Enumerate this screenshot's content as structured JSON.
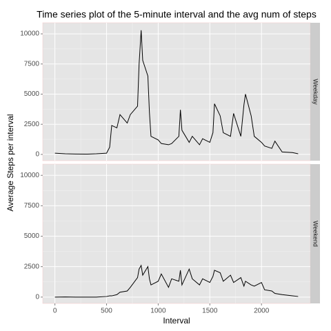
{
  "chart_data": {
    "type": "line",
    "title": "Time series plot of the 5-minute interval and the avg num of steps",
    "x_label": "Interval",
    "y_label": "Average Steps per interval",
    "xlim": [
      -117.75,
      2472.75
    ],
    "xticks": [
      0,
      500,
      1000,
      1500,
      2000
    ],
    "ylim": [
      -520,
      10920
    ],
    "yticks": [
      0,
      2500,
      5000,
      7500,
      10000
    ],
    "grid": true,
    "x": [
      0,
      100,
      200,
      300,
      400,
      500,
      530,
      550,
      600,
      630,
      700,
      730,
      800,
      815,
      835,
      850,
      900,
      915,
      930,
      1000,
      1030,
      1100,
      1130,
      1200,
      1215,
      1230,
      1300,
      1330,
      1400,
      1430,
      1500,
      1530,
      1545,
      1600,
      1630,
      1700,
      1730,
      1800,
      1830,
      1845,
      1900,
      1930,
      2000,
      2030,
      2100,
      2130,
      2200,
      2300,
      2355
    ],
    "series": [
      {
        "name": "Weekday",
        "color": "#000000",
        "values": [
          100,
          50,
          30,
          20,
          50,
          100,
          600,
          2400,
          2200,
          3300,
          2600,
          3300,
          4000,
          7500,
          10300,
          7800,
          6500,
          3500,
          1500,
          1200,
          900,
          800,
          900,
          1500,
          3700,
          2000,
          1000,
          1500,
          800,
          1300,
          1000,
          1800,
          4200,
          3200,
          1800,
          1500,
          3400,
          1500,
          4100,
          5000,
          3200,
          1500,
          1000,
          700,
          500,
          1100,
          200,
          150,
          50
        ]
      },
      {
        "name": "Weekend",
        "color": "#000000",
        "values": [
          0,
          10,
          0,
          0,
          0,
          50,
          100,
          100,
          200,
          400,
          500,
          800,
          1600,
          2300,
          2600,
          1800,
          2500,
          1500,
          1000,
          1300,
          1900,
          800,
          1500,
          1300,
          2200,
          1000,
          2300,
          1500,
          1000,
          1500,
          1200,
          1700,
          2200,
          2000,
          1300,
          1800,
          1200,
          1600,
          900,
          1300,
          1000,
          900,
          1200,
          600,
          500,
          300,
          200,
          100,
          50
        ]
      }
    ]
  }
}
